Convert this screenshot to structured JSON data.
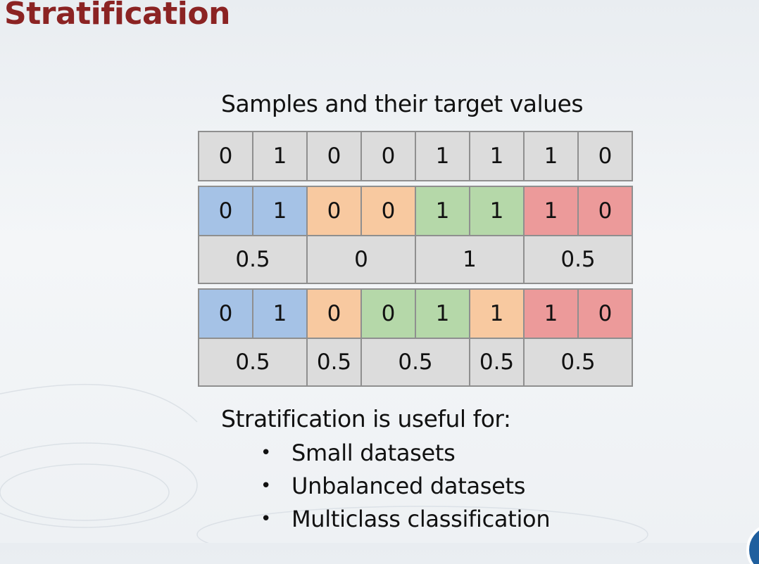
{
  "title": "Stratification",
  "subtitle": "Samples and their target values",
  "colors": {
    "title": "#8b2323",
    "plain": "#dcdcdc",
    "blue": "#a5c2e6",
    "orange": "#f8c9a0",
    "green": "#b5d8a9",
    "red": "#ec9a9a"
  },
  "original_row": {
    "values": [
      "0",
      "1",
      "0",
      "0",
      "1",
      "1",
      "1",
      "0"
    ]
  },
  "split1": {
    "values": [
      "0",
      "1",
      "0",
      "0",
      "1",
      "1",
      "1",
      "0"
    ],
    "colors": [
      "blue",
      "blue",
      "orange",
      "orange",
      "green",
      "green",
      "red",
      "red"
    ],
    "means": [
      {
        "label": "0.5",
        "span": 2
      },
      {
        "label": "0",
        "span": 2
      },
      {
        "label": "1",
        "span": 2
      },
      {
        "label": "0.5",
        "span": 2
      }
    ]
  },
  "split2": {
    "values": [
      "0",
      "1",
      "0",
      "0",
      "1",
      "1",
      "1",
      "0"
    ],
    "colors": [
      "blue",
      "blue",
      "orange",
      "green",
      "green",
      "orange",
      "red",
      "red"
    ],
    "means": [
      {
        "label": "0.5",
        "span": 2
      },
      {
        "label": "0.5",
        "span": 1
      },
      {
        "label": "0.5",
        "span": 2
      },
      {
        "label": "0.5",
        "span": 1
      },
      {
        "label": "0.5",
        "span": 2
      }
    ]
  },
  "notes": {
    "heading": "Stratification is useful for:",
    "bullet_symbol": "•",
    "items": [
      "Small datasets",
      "Unbalanced datasets",
      "Multiclass classification"
    ]
  }
}
